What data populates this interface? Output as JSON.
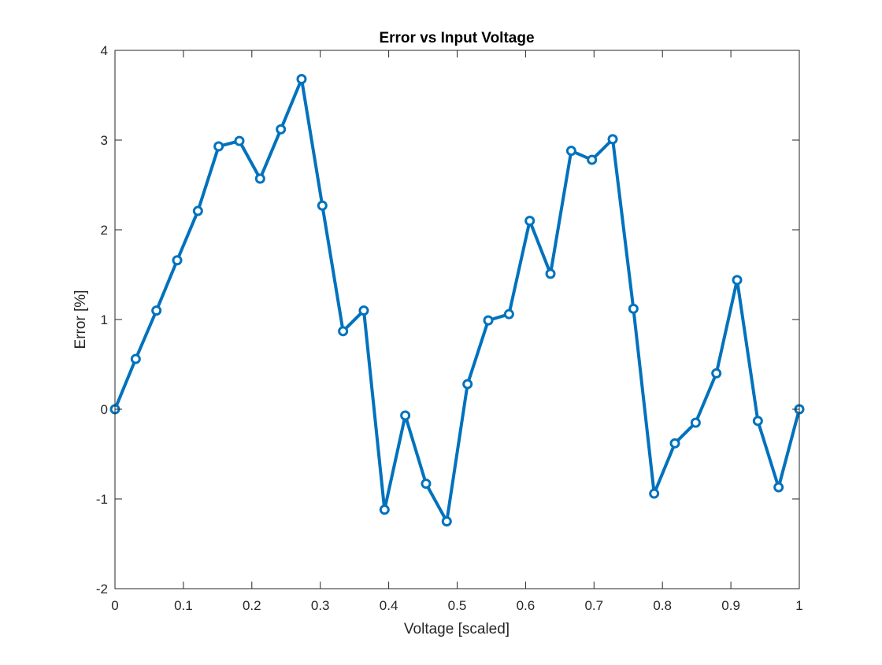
{
  "chart_data": {
    "type": "line",
    "title": "Error vs Input Voltage",
    "xlabel": "Voltage [scaled]",
    "ylabel": "Error [%]",
    "xlim": [
      0,
      1
    ],
    "ylim": [
      -2,
      4
    ],
    "xticks": [
      0,
      0.1,
      0.2,
      0.3,
      0.4,
      0.5,
      0.6,
      0.7,
      0.8,
      0.9,
      1
    ],
    "xtick_labels": [
      "0",
      "0.1",
      "0.2",
      "0.3",
      "0.4",
      "0.5",
      "0.6",
      "0.7",
      "0.8",
      "0.9",
      "1"
    ],
    "yticks": [
      -2,
      -1,
      0,
      1,
      2,
      3,
      4
    ],
    "ytick_labels": [
      "-2",
      "-1",
      "0",
      "1",
      "2",
      "3",
      "4"
    ],
    "grid": false,
    "marker": "circle",
    "series": [
      {
        "color": "#0072BD",
        "x": [
          0,
          0.0303,
          0.0606,
          0.0909,
          0.1212,
          0.1515,
          0.1818,
          0.2121,
          0.2424,
          0.2727,
          0.303,
          0.3333,
          0.3636,
          0.3939,
          0.4242,
          0.4545,
          0.4848,
          0.5152,
          0.5455,
          0.5758,
          0.6061,
          0.6364,
          0.6667,
          0.697,
          0.7273,
          0.7576,
          0.7879,
          0.8182,
          0.8485,
          0.8788,
          0.9091,
          0.9394,
          0.9697,
          1.0
        ],
        "y": [
          0,
          0.56,
          1.1,
          1.66,
          2.21,
          2.93,
          2.99,
          2.57,
          3.12,
          3.68,
          2.27,
          0.87,
          1.1,
          -1.12,
          -0.07,
          -0.83,
          -1.25,
          0.28,
          0.99,
          1.06,
          2.1,
          1.51,
          2.88,
          2.78,
          3.01,
          1.12,
          -0.94,
          -0.38,
          -0.15,
          0.4,
          1.44,
          -0.13,
          -0.87,
          0
        ]
      }
    ]
  }
}
